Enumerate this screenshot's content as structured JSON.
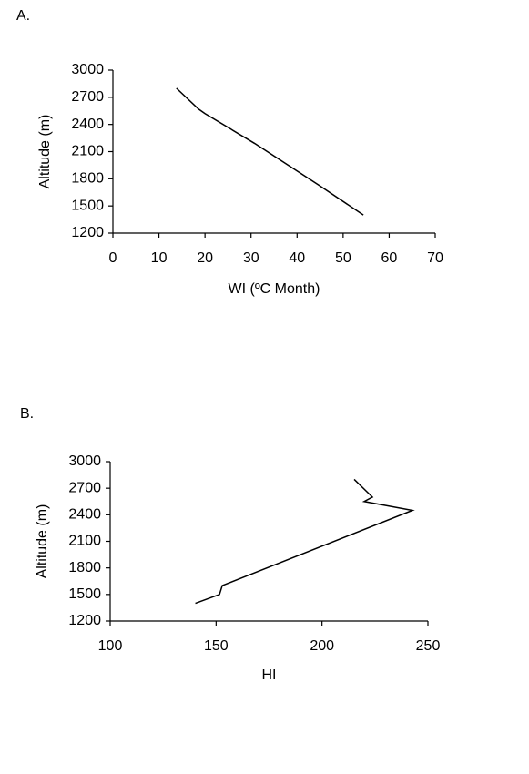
{
  "chart_data": [
    {
      "type": "line",
      "label": "A.",
      "x_label": "WI (ºC Month)",
      "y_label": "Altitude (m)",
      "x": [
        13.8,
        18.6,
        20,
        30.8,
        44.7,
        54.4
      ],
      "values": [
        2800,
        2570,
        2520,
        2190,
        1730,
        1400
      ],
      "color": "#000000",
      "xlim": [
        0,
        70
      ],
      "xticks": [
        0,
        10,
        20,
        30,
        40,
        50,
        60,
        70
      ],
      "ylim": [
        1200,
        3000
      ],
      "yticks": [
        1200,
        1500,
        1800,
        2100,
        2400,
        2700,
        3000
      ]
    },
    {
      "type": "line",
      "label": "B.",
      "x_label": "HI",
      "y_label": "Altitude (m)",
      "x": [
        215.2,
        223.8,
        219.9,
        242.7,
        152.9,
        151.6,
        140.2
      ],
      "values": [
        2800,
        2600,
        2550,
        2450,
        1600,
        1500,
        1400
      ],
      "color": "#000000",
      "xlim": [
        100,
        250
      ],
      "xticks": [
        100,
        150,
        200,
        250
      ],
      "ylim": [
        1200,
        3000
      ],
      "yticks": [
        1200,
        1500,
        1800,
        2100,
        2400,
        2700,
        3000
      ]
    }
  ]
}
